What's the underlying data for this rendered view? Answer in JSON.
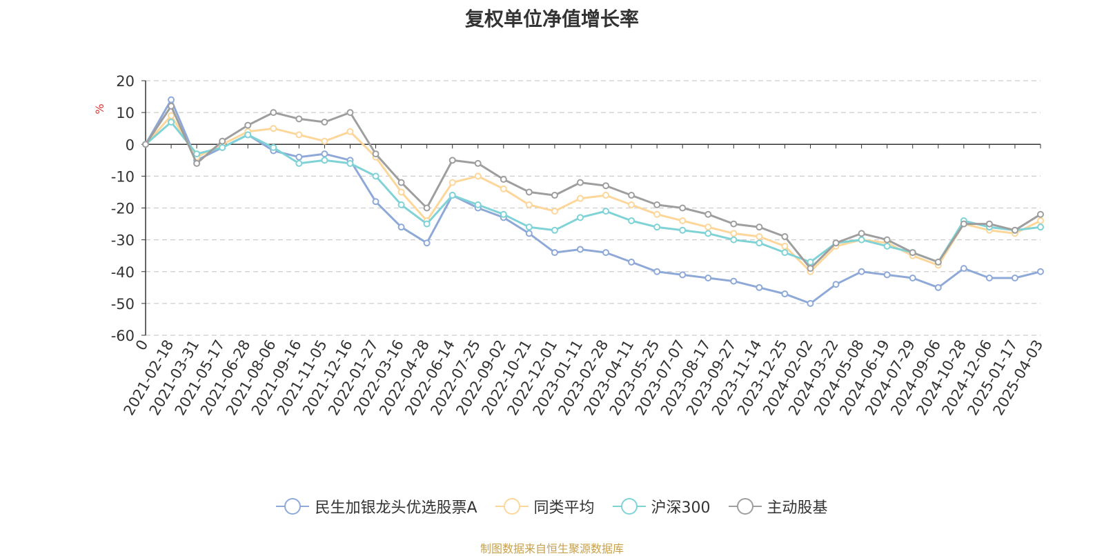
{
  "chart_data": {
    "type": "line",
    "title": "复权单位净值增长率",
    "ylabel": "%",
    "ylim": [
      -60,
      20
    ],
    "yticks": [
      20,
      10,
      0,
      -10,
      -20,
      -30,
      -40,
      -50,
      -60
    ],
    "xtick_labels": [
      "0",
      "2021-02-18",
      "2021-03-31",
      "2021-05-17",
      "2021-06-28",
      "2021-08-06",
      "2021-09-16",
      "2021-11-05",
      "2021-12-16",
      "2022-01-27",
      "2022-03-16",
      "2022-04-28",
      "2022-06-14",
      "2022-07-25",
      "2022-09-02",
      "2022-10-21",
      "2022-12-01",
      "2023-01-11",
      "2023-02-28",
      "2023-04-11",
      "2023-05-25",
      "2023-07-07",
      "2023-08-17",
      "2023-09-27",
      "2023-11-14",
      "2023-12-25",
      "2024-02-02",
      "2024-03-22",
      "2024-05-08",
      "2024-06-19",
      "2024-07-29",
      "2024-09-06",
      "2024-10-28",
      "2024-12-06",
      "2025-01-17",
      "2025-04-03"
    ],
    "grid": true,
    "legend_position": "bottom",
    "x": [
      "0",
      "2021-02-18",
      "2021-03-31",
      "2021-05-17",
      "2021-06-28",
      "2021-08-06",
      "2021-09-16",
      "2021-11-05",
      "2021-12-16",
      "2022-01-27",
      "2022-03-16",
      "2022-04-28",
      "2022-06-14",
      "2022-07-25",
      "2022-09-02",
      "2022-10-21",
      "2022-12-01",
      "2023-01-11",
      "2023-02-28",
      "2023-04-11",
      "2023-05-25",
      "2023-07-07",
      "2023-08-17",
      "2023-09-27",
      "2023-11-14",
      "2023-12-25",
      "2024-02-02",
      "2024-03-22",
      "2024-05-08",
      "2024-06-19",
      "2024-07-29",
      "2024-09-06",
      "2024-10-28",
      "2024-12-06",
      "2025-01-17",
      "2025-04-03"
    ],
    "series": [
      {
        "name": "民生加银龙头优选股票A",
        "color": "#8ea9d8",
        "values": [
          0,
          14,
          -5,
          -1,
          3,
          -2,
          -4,
          -3,
          -5,
          -18,
          -26,
          -31,
          -16,
          -20,
          -23,
          -28,
          -34,
          -33,
          -34,
          -37,
          -40,
          -41,
          -42,
          -43,
          -45,
          -47,
          -50,
          -44,
          -40,
          -41,
          -42,
          -45,
          -39,
          -42,
          -42,
          -40
        ]
      },
      {
        "name": "同类平均",
        "color": "#fdd69a",
        "values": [
          0,
          9,
          -4,
          0,
          4,
          5,
          3,
          1,
          4,
          -4,
          -15,
          -24,
          -12,
          -10,
          -14,
          -19,
          -21,
          -17,
          -16,
          -19,
          -22,
          -24,
          -26,
          -28,
          -29,
          -32,
          -40,
          -32,
          -30,
          -31,
          -35,
          -38,
          -25,
          -27,
          -28,
          -24
        ]
      },
      {
        "name": "沪深300",
        "color": "#7fd3d6",
        "values": [
          0,
          7,
          -3,
          -1,
          3,
          -1,
          -6,
          -5,
          -6,
          -10,
          -19,
          -25,
          -16,
          -19,
          -22,
          -26,
          -27,
          -23,
          -21,
          -24,
          -26,
          -27,
          -28,
          -30,
          -31,
          -34,
          -37,
          -31,
          -30,
          -32,
          -34,
          -37,
          -24,
          -26,
          -27,
          -26
        ]
      },
      {
        "name": "主动股基",
        "color": "#9e9e9e",
        "values": [
          0,
          12,
          -6,
          1,
          6,
          10,
          8,
          7,
          10,
          -3,
          -12,
          -20,
          -5,
          -6,
          -11,
          -15,
          -16,
          -12,
          -13,
          -16,
          -19,
          -20,
          -22,
          -25,
          -26,
          -29,
          -39,
          -31,
          -28,
          -30,
          -34,
          -37,
          -25,
          -25,
          -27,
          -22
        ]
      }
    ]
  },
  "legend": {
    "item0": "民生加银龙头优选股票A",
    "item1": "同类平均",
    "item2": "沪深300",
    "item3": "主动股基"
  },
  "source_note": "制图数据来自恒生聚源数据库"
}
